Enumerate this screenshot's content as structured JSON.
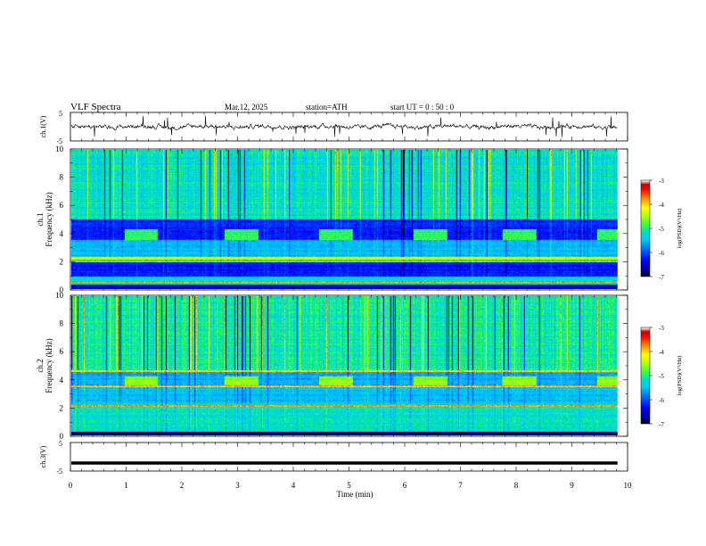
{
  "header": {
    "title": "VLF  Spectra",
    "date": "Mar.12, 2025",
    "station": "station=ATH",
    "start_ut": "start  UT  =   0 : 50 : 0"
  },
  "chart_data": [
    {
      "type": "line",
      "ylabel": "ch.1(V)",
      "yticks": [
        "5",
        "-5"
      ],
      "ylim": [
        -5,
        5
      ],
      "description_values": "broadband waveform around 0 V, range about -1.5 to 1.2 V with frequent spikes"
    },
    {
      "type": "heatmap",
      "ylabel_line1": "ch.1",
      "ylabel_line2": "Frequency (kHz)",
      "yticks": [
        "0",
        "2",
        "4",
        "6",
        "8",
        "10"
      ],
      "ylim": [
        0,
        10
      ],
      "colorbar": {
        "label": "log(PSD)(V²/Hz)",
        "ticks": [
          "-3",
          "-4",
          "-5",
          "-6",
          "-7"
        ],
        "range": [
          -7,
          -3
        ]
      },
      "features": {
        "background_high_band_log_psd": -5.2,
        "dark_band_khz": [
          3.5,
          5.0
        ],
        "dark_band_log_psd": -6.3,
        "lower_dark_band_khz": [
          0.9,
          1.9
        ],
        "tone_segments_min": [
          1.0,
          2.8,
          4.5,
          6.2,
          7.8,
          9.5
        ]
      }
    },
    {
      "type": "heatmap",
      "ylabel_line1": "ch.2",
      "ylabel_line2": "Frequency (kHz)",
      "yticks": [
        "0",
        "2",
        "4",
        "6",
        "8",
        "10"
      ],
      "ylim": [
        0,
        10
      ],
      "colorbar": {
        "label": "log(PSD)(V²/Hz)",
        "ticks": [
          "-3",
          "-4",
          "-5",
          "-6",
          "-7"
        ],
        "range": [
          -7,
          -3
        ]
      },
      "features": {
        "background_high_band_log_psd": -5.0,
        "red_lines_khz": [
          2.1,
          3.5,
          4.6
        ],
        "tone_segments_min": [
          1.0,
          2.8,
          4.5,
          6.2,
          7.8,
          9.5
        ]
      }
    },
    {
      "type": "line",
      "ylabel": "ch.3(V)",
      "yticks": [
        "5",
        "-5"
      ],
      "ylim": [
        -5,
        5
      ],
      "constant_value": -2.2
    }
  ],
  "xaxis": {
    "label": "Time  (min)",
    "ticks": [
      "0",
      "1",
      "2",
      "3",
      "4",
      "5",
      "6",
      "7",
      "8",
      "9",
      "10"
    ],
    "range": [
      0,
      10
    ],
    "data_end_min": 9.82
  },
  "colors": {
    "palette": [
      "#000000",
      "#0000b0",
      "#0000ff",
      "#0080ff",
      "#00c8ff",
      "#00e0c0",
      "#40ff40",
      "#c0ff00",
      "#ffff00",
      "#ff8000",
      "#ff0000",
      "#c00000",
      "#ffffff"
    ]
  }
}
